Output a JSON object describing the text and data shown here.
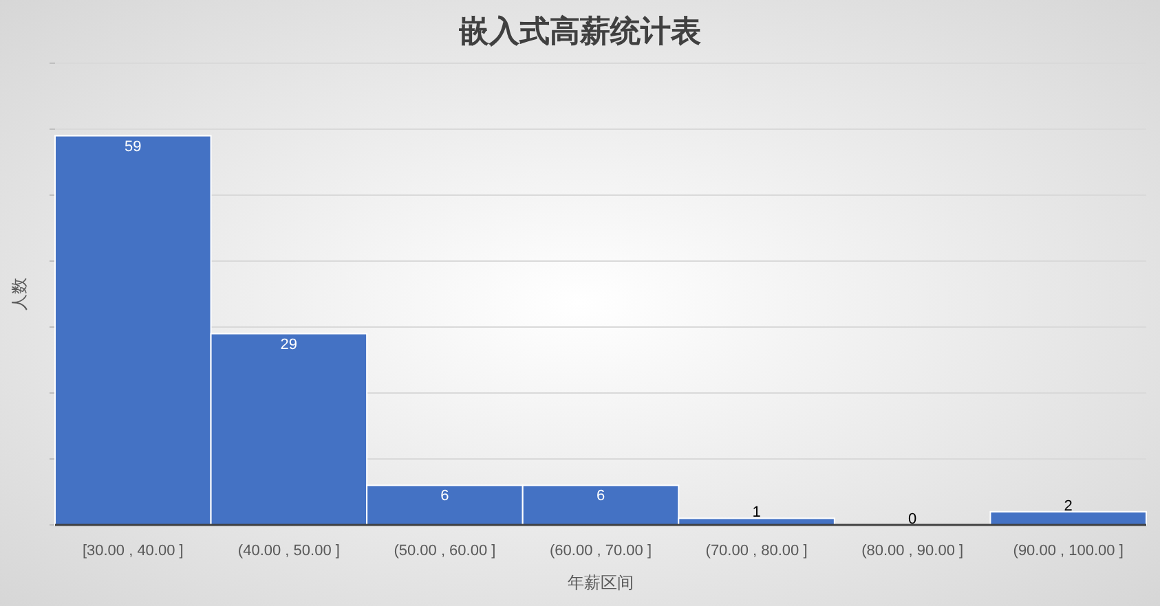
{
  "chart_data": {
    "type": "bar",
    "title": "嵌入式高薪统计表",
    "xlabel": "年薪区间",
    "ylabel": "人数",
    "categories": [
      "[30.00 , 40.00 ]",
      "(40.00 , 50.00 ]",
      "(50.00 , 60.00 ]",
      "(60.00 , 70.00 ]",
      "(70.00 , 80.00 ]",
      "(80.00 , 90.00 ]",
      "(90.00 , 100.00 ]"
    ],
    "values": [
      59,
      29,
      6,
      6,
      1,
      0,
      2
    ],
    "color": "#4472c4",
    "ylim": [
      0,
      70
    ],
    "yticks": [
      {
        "value": 0,
        "label": null
      },
      {
        "value": 10,
        "label": null
      },
      {
        "value": 20,
        "label": null
      },
      {
        "value": 30,
        "label": null
      },
      {
        "value": 40,
        "label": null
      },
      {
        "value": 50,
        "label": null
      },
      {
        "value": 60,
        "label": null
      },
      {
        "value": 70,
        "label": null
      }
    ],
    "tick_labels": "x",
    "grid": "y",
    "data_labels": true
  }
}
